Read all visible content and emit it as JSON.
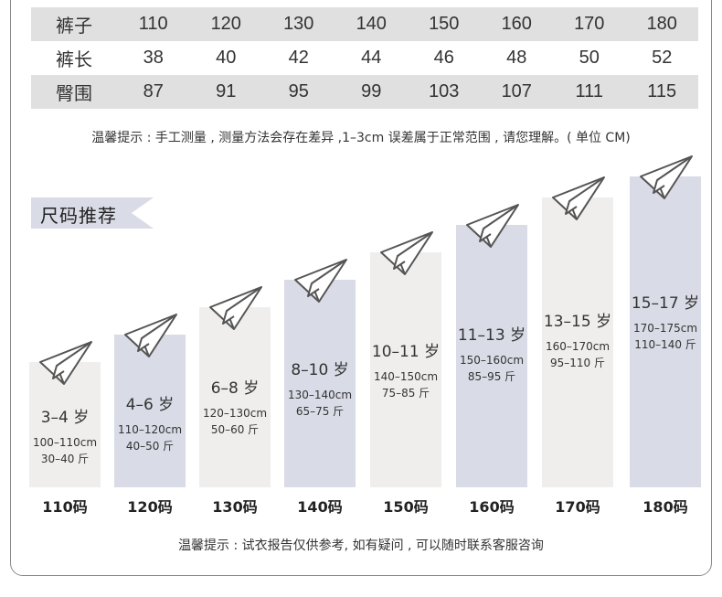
{
  "size_table": {
    "rows": [
      {
        "label": "裤子",
        "values": [
          "110",
          "120",
          "130",
          "140",
          "150",
          "160",
          "170",
          "180"
        ]
      },
      {
        "label": "裤长",
        "values": [
          "38",
          "40",
          "42",
          "44",
          "46",
          "48",
          "50",
          "52"
        ]
      },
      {
        "label": "臀围",
        "values": [
          "87",
          "91",
          "95",
          "99",
          "103",
          "107",
          "111",
          "115"
        ]
      }
    ]
  },
  "measure_note": "温馨提示 : 手工测量 , 测量方法会存在差异 ,1–3cm 误差属于正常范围 , 请您理解。( 单位 CM)",
  "recommend_tag": "尺码推荐",
  "recommendations": [
    {
      "size": "110码",
      "age": "3–4 岁",
      "height": "100–110cm",
      "weight": "30–40 斤"
    },
    {
      "size": "120码",
      "age": "4–6 岁",
      "height": "110–120cm",
      "weight": "40–50 斤"
    },
    {
      "size": "130码",
      "age": "6–8 岁",
      "height": "120–130cm",
      "weight": "50–60 斤"
    },
    {
      "size": "140码",
      "age": "8–10 岁",
      "height": "130–140cm",
      "weight": "65–75 斤"
    },
    {
      "size": "150码",
      "age": "10–11 岁",
      "height": "140–150cm",
      "weight": "75–85 斤"
    },
    {
      "size": "160码",
      "age": "11–13 岁",
      "height": "150–160cm",
      "weight": "85–95 斤"
    },
    {
      "size": "170码",
      "age": "13–15 岁",
      "height": "160–170cm",
      "weight": "95–110 斤"
    },
    {
      "size": "180码",
      "age": "15–17 岁",
      "height": "170–175cm",
      "weight": "110–140 斤"
    }
  ],
  "bottom_note": "温馨提示 : 试衣报告仅供参考, 如有疑问 , 可以随时联系客服咨询",
  "icons": {
    "plane": "paper-plane-icon"
  },
  "colors": {
    "table_shade": "#e0e0e0",
    "bar_gray": "#efeeec",
    "bar_blue": "#d9dbe6"
  }
}
